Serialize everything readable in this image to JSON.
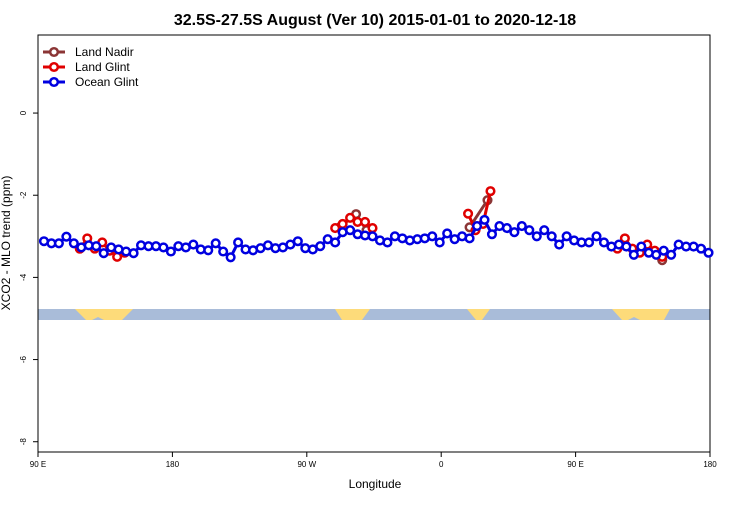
{
  "chart_data": {
    "type": "line",
    "title": "32.5S-27.5S August (Ver 10)   2015-01-01 to 2020-12-18",
    "x_label": "Longitude",
    "y_label": "XCO2 - MLO trend (ppm)",
    "xlim": [
      90,
      540
    ],
    "ylim": [
      -8.25,
      1.9
    ],
    "xticks": [
      {
        "value": 90,
        "label": "90 E"
      },
      180,
      {
        "value": 270,
        "label": "90 W"
      },
      {
        "value": 360,
        "label": "0"
      },
      {
        "value": 450,
        "label": "90 E"
      },
      {
        "value": 540,
        "label": "180"
      }
    ],
    "yticks": [
      0,
      -2,
      -4,
      -6,
      -8
    ],
    "legend": "top-left",
    "series": [
      {
        "name": "Land Nadir",
        "color": "#8b3535",
        "x": [
          118,
          200,
          292,
          303,
          310,
          350,
          379,
          391,
          450,
          508
        ],
        "values": [
          -3.3,
          null,
          -2.78,
          -2.46,
          -2.85,
          null,
          -2.78,
          -2.12,
          null,
          -3.58
        ]
      },
      {
        "name": "Land Glint",
        "color": "#e00000",
        "x": [
          118,
          123,
          128,
          133,
          138,
          143,
          148,
          200,
          289,
          294,
          299,
          304,
          309,
          314,
          350,
          378,
          383,
          388,
          393,
          450,
          478,
          483,
          488,
          493,
          498,
          503,
          508
        ],
        "values": [
          -3.3,
          -3.05,
          -3.3,
          -3.15,
          -3.35,
          -3.5,
          -3.4,
          null,
          -2.8,
          -2.7,
          -2.55,
          -2.65,
          -2.65,
          -2.8,
          null,
          -2.45,
          -2.85,
          -2.7,
          -1.9,
          null,
          -3.3,
          -3.05,
          -3.3,
          -3.4,
          -3.2,
          -3.35,
          -3.5
        ]
      },
      {
        "name": "Ocean Glint",
        "color": "#0000e0",
        "x": [
          94,
          99,
          104,
          109,
          114,
          119,
          124,
          129,
          134,
          139,
          144,
          149,
          154,
          159,
          164,
          169,
          174,
          179,
          184,
          189,
          194,
          199,
          204,
          209,
          214,
          219,
          224,
          229,
          234,
          239,
          244,
          249,
          254,
          259,
          264,
          269,
          274,
          279,
          284,
          289,
          294,
          299,
          304,
          309,
          314,
          319,
          324,
          329,
          334,
          339,
          344,
          349,
          354,
          359,
          364,
          369,
          374,
          379,
          384,
          389,
          394,
          399,
          404,
          409,
          414,
          419,
          424,
          429,
          434,
          439,
          444,
          449,
          454,
          459,
          464,
          469,
          474,
          479,
          484,
          489,
          494,
          499,
          504,
          509,
          514,
          519,
          524,
          529,
          534,
          539
        ],
        "values": [
          -3.12,
          -3.17,
          -3.17,
          -3.01,
          -3.17,
          -3.27,
          -3.22,
          -3.24,
          -3.41,
          -3.27,
          -3.32,
          -3.37,
          -3.41,
          -3.22,
          -3.24,
          -3.24,
          -3.27,
          -3.37,
          -3.24,
          -3.27,
          -3.2,
          -3.32,
          -3.34,
          -3.17,
          -3.37,
          -3.51,
          -3.15,
          -3.32,
          -3.34,
          -3.29,
          -3.22,
          -3.29,
          -3.27,
          -3.2,
          -3.12,
          -3.29,
          -3.32,
          -3.24,
          -3.07,
          -3.15,
          -2.9,
          -2.85,
          -2.95,
          -2.98,
          -3.0,
          -3.1,
          -3.15,
          -3.0,
          -3.05,
          -3.1,
          -3.07,
          -3.05,
          -3.0,
          -3.15,
          -2.93,
          -3.07,
          -3.0,
          -3.05,
          -2.75,
          -2.6,
          -2.95,
          -2.75,
          -2.8,
          -2.9,
          -2.75,
          -2.85,
          -3.0,
          -2.85,
          -3.0,
          -3.2,
          -3.0,
          -3.1,
          -3.15,
          -3.15,
          -3.0,
          -3.15,
          -3.25,
          -3.2,
          -3.25,
          -3.45,
          -3.25,
          -3.4,
          -3.45,
          -3.35,
          -3.45,
          -3.2,
          -3.25,
          -3.25,
          -3.3,
          -3.4
        ]
      }
    ]
  }
}
